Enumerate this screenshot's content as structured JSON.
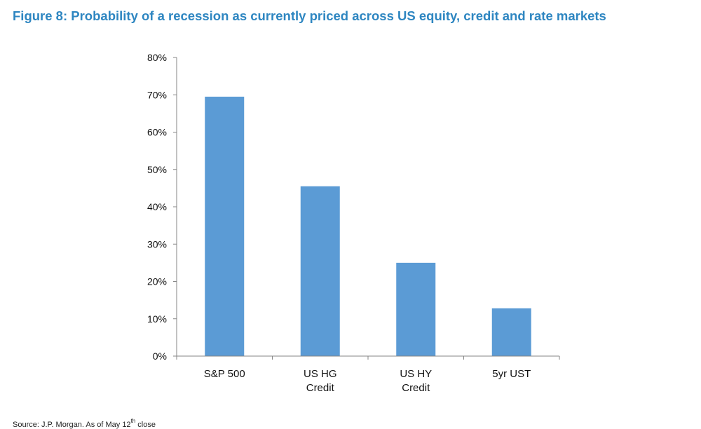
{
  "figure": {
    "title": "Figure 8: Probability of a recession as currently priced across US equity, credit and rate markets",
    "source_prefix": "Source: J.P. Morgan. As of May 12",
    "source_sup": "th",
    "source_suffix": " close"
  },
  "colors": {
    "bar": "#5b9bd5",
    "title": "#2e86c1",
    "axis": "#868686"
  },
  "chart_data": {
    "type": "bar",
    "categories": [
      [
        "S&P 500"
      ],
      [
        "US HG",
        "Credit"
      ],
      [
        "US HY",
        "Credit"
      ],
      [
        "5yr UST"
      ]
    ],
    "values": [
      69.5,
      45.5,
      25.0,
      12.8
    ],
    "yticks": [
      "0%",
      "10%",
      "20%",
      "30%",
      "40%",
      "50%",
      "60%",
      "70%",
      "80%"
    ],
    "ylim": [
      0,
      80
    ],
    "grid": false,
    "legend": "none"
  }
}
